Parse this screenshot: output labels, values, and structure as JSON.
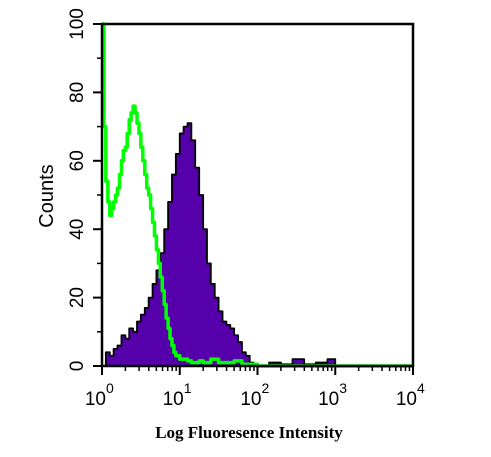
{
  "chart_data": {
    "type": "area",
    "xlabel": "Log Fluoresence Intensity",
    "ylabel": "Counts",
    "x_scale": "log",
    "xlim": [
      1,
      10000
    ],
    "ylim": [
      0,
      100
    ],
    "x_ticks": [
      {
        "value": 1,
        "base": "10",
        "exp": "0"
      },
      {
        "value": 10,
        "base": "10",
        "exp": "1"
      },
      {
        "value": 100,
        "base": "10",
        "exp": "2"
      },
      {
        "value": 1000,
        "base": "10",
        "exp": "3"
      },
      {
        "value": 10000,
        "base": "10",
        "exp": "4"
      }
    ],
    "y_ticks": [
      "0",
      "20",
      "40",
      "60",
      "80",
      "100"
    ],
    "grid": false,
    "series": [
      {
        "color": "#5500aa",
        "style": "filled",
        "x": [
          1,
          1.12,
          1.26,
          1.41,
          1.58,
          1.78,
          2.0,
          2.24,
          2.51,
          2.82,
          3.16,
          3.55,
          3.98,
          4.47,
          5.01,
          5.62,
          6.31,
          7.08,
          7.94,
          8.91,
          10.0,
          11.2,
          12.6,
          14.1,
          15.8,
          17.8,
          20.0,
          22.4,
          25.1,
          28.2,
          31.6,
          35.5,
          39.8,
          44.7,
          50.1,
          56.2,
          63.1,
          70.8,
          79.4,
          89.1,
          100,
          141,
          200,
          282,
          398,
          562,
          794,
          1000,
          10000
        ],
        "y": [
          0,
          4,
          3,
          5,
          6,
          9,
          8,
          11,
          10,
          13,
          15,
          17,
          20,
          24,
          28,
          33,
          40,
          48,
          56,
          62,
          68,
          70,
          71,
          66,
          58,
          50,
          40,
          30,
          24,
          20,
          16,
          13,
          12,
          11,
          9,
          7,
          4,
          3,
          1,
          0.5,
          0,
          1,
          0.5,
          2,
          0.5,
          1,
          2,
          0,
          0
        ]
      },
      {
        "color": "#00ff00",
        "style": "line",
        "x": [
          1,
          1.06,
          1.12,
          1.19,
          1.26,
          1.33,
          1.41,
          1.5,
          1.58,
          1.68,
          1.78,
          1.88,
          2.0,
          2.11,
          2.24,
          2.37,
          2.51,
          2.66,
          2.82,
          2.99,
          3.16,
          3.35,
          3.55,
          3.76,
          3.98,
          4.22,
          4.47,
          4.73,
          5.01,
          5.31,
          5.62,
          5.96,
          6.31,
          6.68,
          7.08,
          7.5,
          7.94,
          8.41,
          8.91,
          10.0,
          11.2,
          12.6,
          14.1,
          15.8,
          17.8,
          20.0,
          25.1,
          31.6,
          39.8,
          50.1,
          63.1,
          79.4,
          100,
          10000
        ],
        "y": [
          100,
          70,
          54,
          48,
          44,
          46,
          48,
          50,
          52,
          56,
          60,
          63,
          64,
          68,
          72,
          74,
          76,
          74,
          71,
          68,
          64,
          60,
          56,
          52,
          50,
          46,
          42,
          38,
          34,
          30,
          26,
          22,
          18,
          14,
          11,
          8,
          6,
          4,
          3,
          2,
          2,
          1.5,
          1,
          1,
          1.5,
          1,
          2,
          1,
          1,
          1.5,
          0.5,
          0.5,
          0,
          0
        ]
      }
    ]
  }
}
